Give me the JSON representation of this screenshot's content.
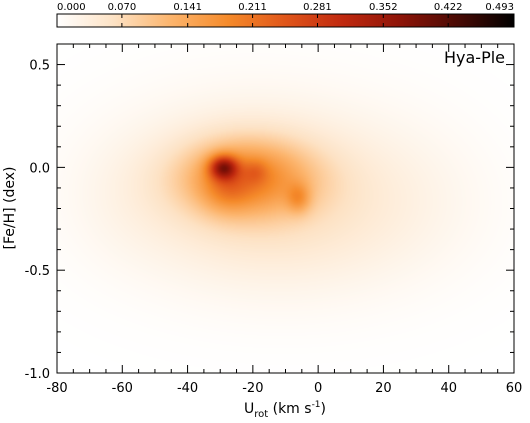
{
  "chart_data": {
    "type": "heatmap",
    "title": "",
    "annotation": "Hya-Ple",
    "xlabel_main": "U",
    "xlabel_sub": "rot",
    "xlabel_units": " (km s",
    "xlabel_sup": "-1",
    "xlabel_close": ")",
    "ylabel": "[Fe/H] (dex)",
    "xlim": [
      -80,
      60
    ],
    "ylim": [
      -1.0,
      0.6
    ],
    "x_ticks": [
      -80,
      -60,
      -40,
      -20,
      0,
      20,
      40,
      60
    ],
    "x_tick_labels": [
      "-80",
      "-60",
      "-40",
      "-20",
      "0",
      "20",
      "40",
      "60"
    ],
    "y_ticks": [
      -1.0,
      -0.5,
      0.0,
      0.5
    ],
    "y_tick_labels": [
      "-1.0",
      "-0.5",
      "0.0",
      "0.5"
    ],
    "colorbar": {
      "range": [
        0.0,
        0.493
      ],
      "tick_values": [
        0.0,
        0.07,
        0.141,
        0.211,
        0.281,
        0.352,
        0.422,
        0.493
      ],
      "tick_labels": [
        "0.000",
        "0.070",
        "0.141",
        "0.211",
        "0.281",
        "0.352",
        "0.422",
        "0.493"
      ],
      "color_stops": [
        "#ffffff",
        "#fde2c4",
        "#fcb46c",
        "#f58a2a",
        "#e0561a",
        "#c0290f",
        "#8e1408",
        "#4a0a04",
        "#000000"
      ]
    },
    "density_components": [
      {
        "x": -20,
        "y": -0.08,
        "sx": 30,
        "sy": 0.3,
        "amp": 0.045
      },
      {
        "x": -5,
        "y": -0.25,
        "sx": 32,
        "sy": 0.28,
        "amp": 0.025
      },
      {
        "x": -22,
        "y": -0.05,
        "sx": 14,
        "sy": 0.13,
        "amp": 0.14
      },
      {
        "x": -29,
        "y": 0.0,
        "sx": 3,
        "sy": 0.04,
        "amp": 0.2
      },
      {
        "x": -6,
        "y": -0.15,
        "sx": 2.5,
        "sy": 0.05,
        "amp": 0.07
      },
      {
        "x": -19,
        "y": -0.02,
        "sx": 2.5,
        "sy": 0.04,
        "amp": 0.04
      },
      {
        "x": -28,
        "y": -0.1,
        "sx": 5,
        "sy": 0.08,
        "amp": 0.05
      },
      {
        "x": -60,
        "y": -0.15,
        "sx": 12,
        "sy": 0.22,
        "amp": 0.006
      },
      {
        "x": 30,
        "y": -0.1,
        "sx": 18,
        "sy": 0.28,
        "amp": 0.006
      }
    ]
  }
}
